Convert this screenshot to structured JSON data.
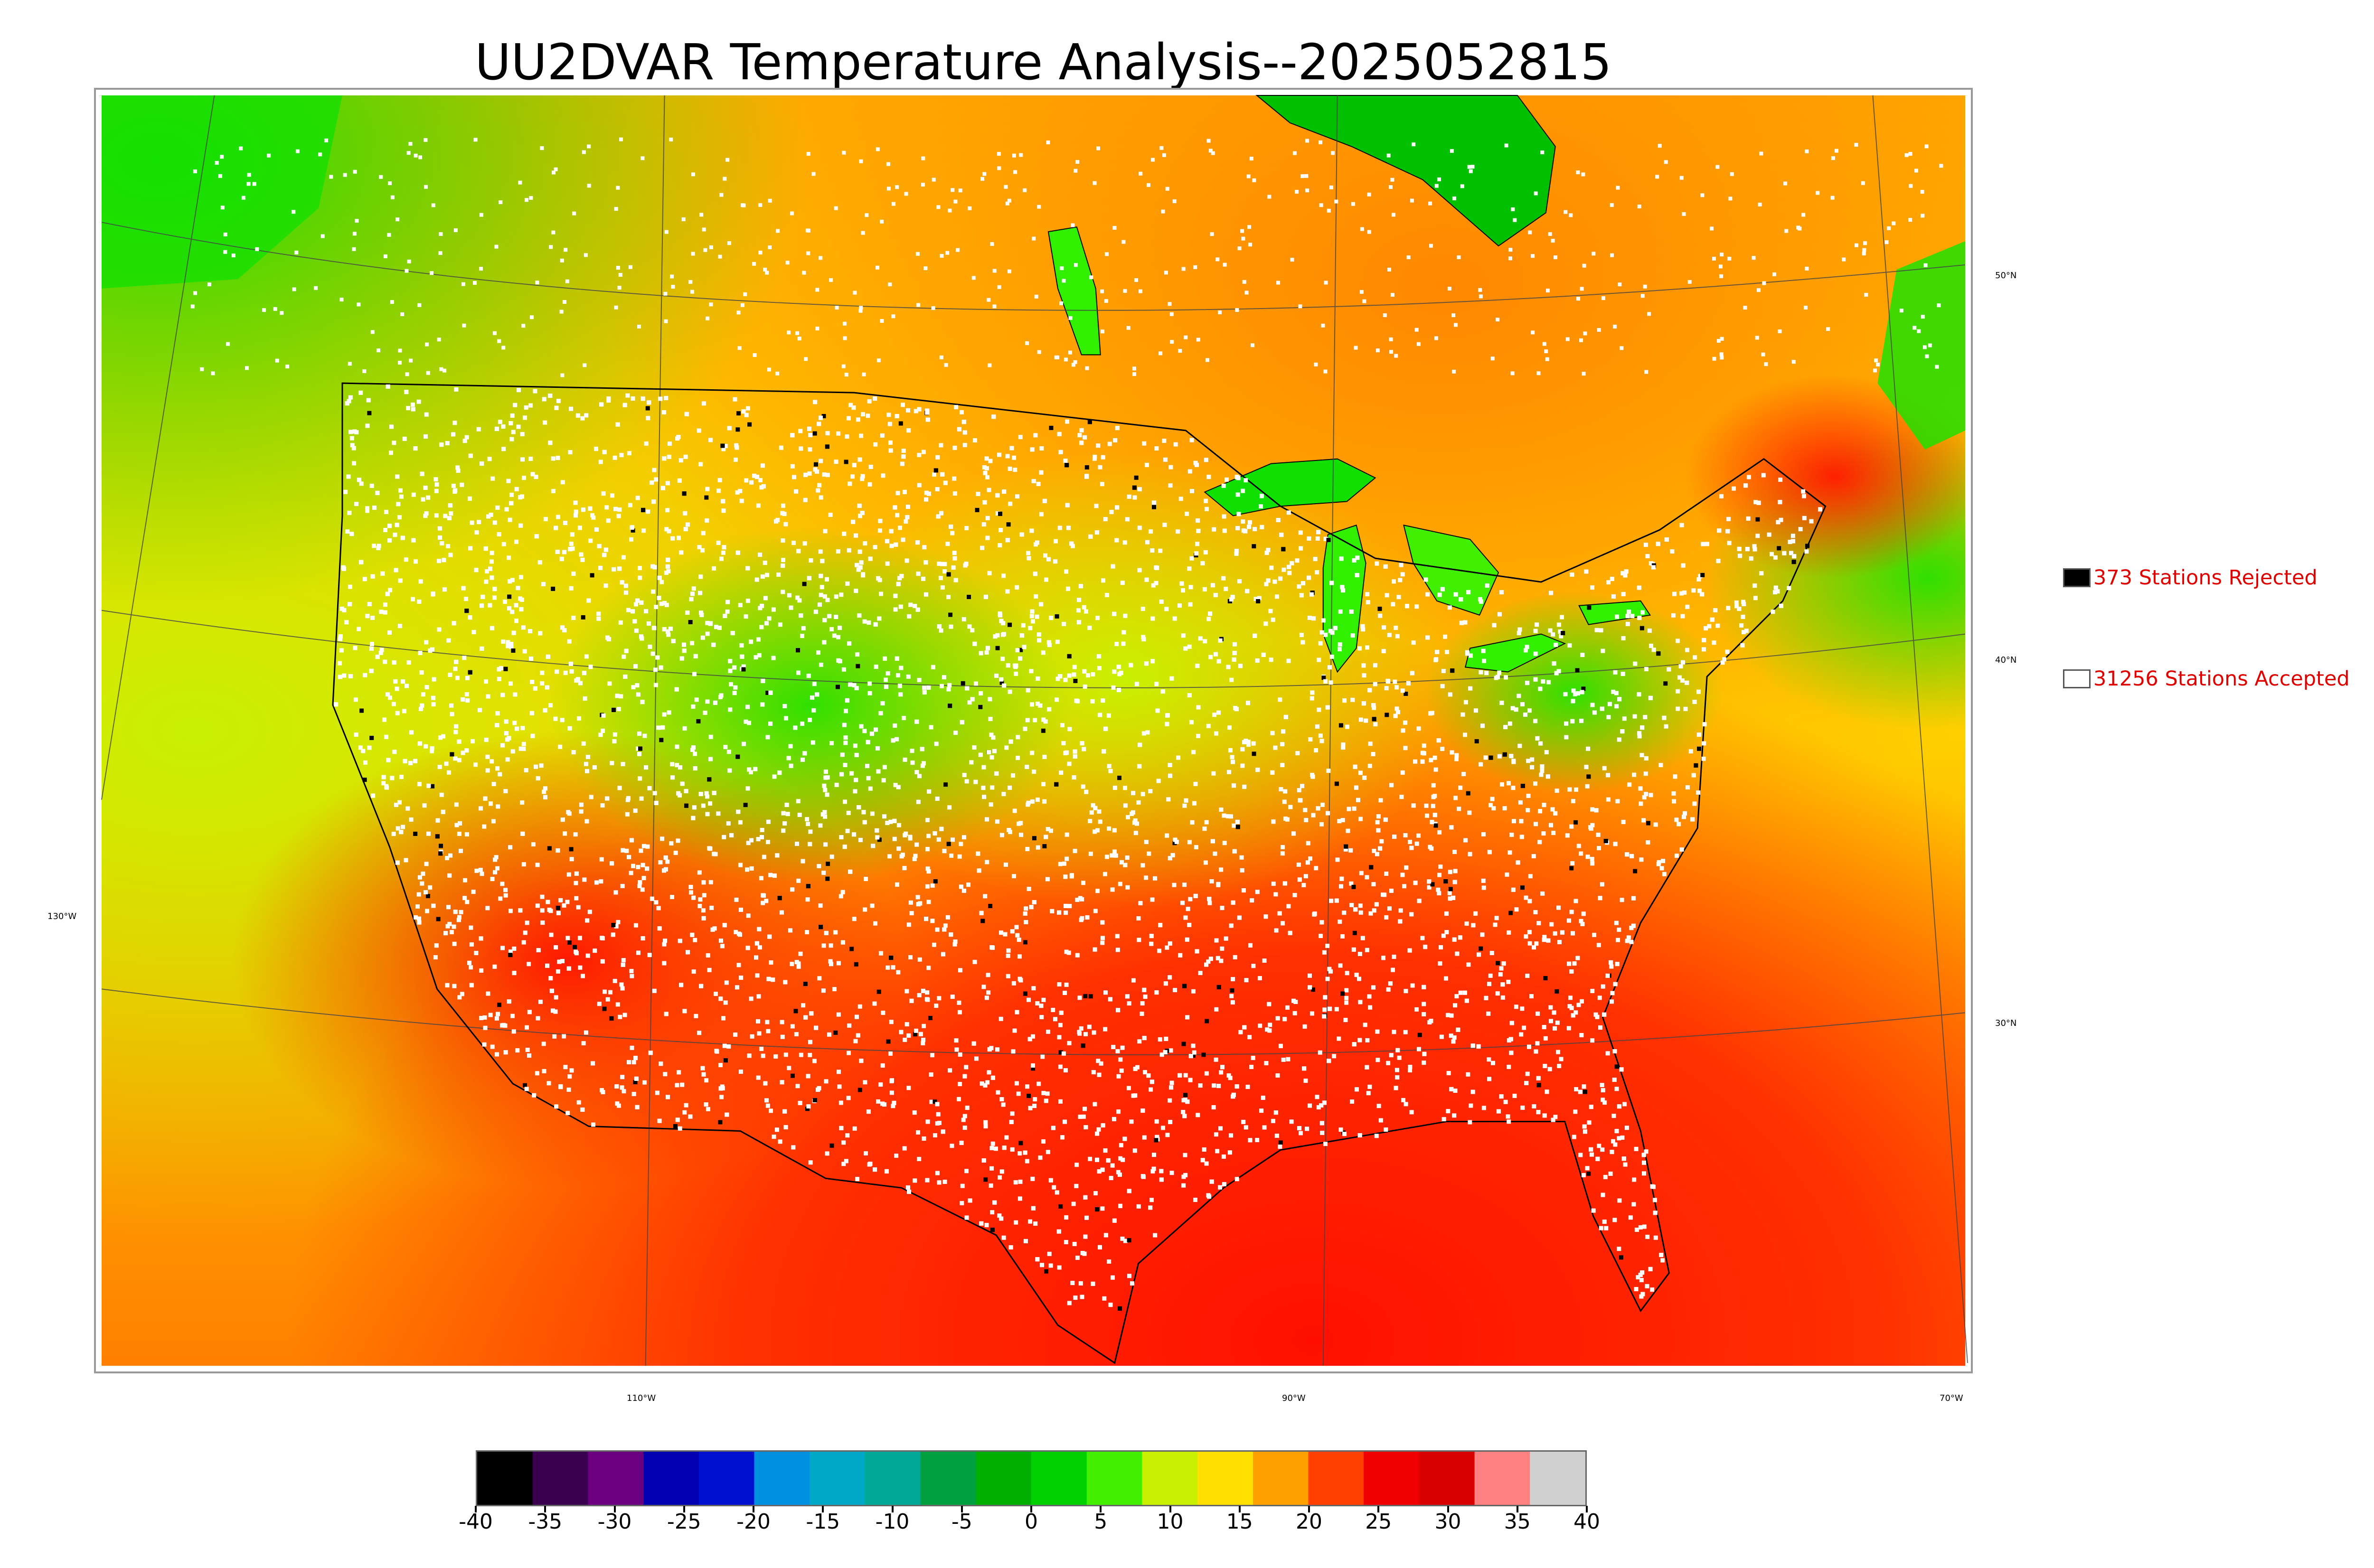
{
  "title": "UU2DVAR Temperature Analysis--2025052815",
  "map": {
    "latitude_labels": [
      "50°N",
      "40°N",
      "30°N"
    ],
    "longitude_labels": [
      "130°W",
      "110°W",
      "90°W",
      "70°W"
    ]
  },
  "legend": {
    "rejected": {
      "count_text": "373 Stations Rejected",
      "swatch_color": "#000000"
    },
    "accepted": {
      "count_text": "31256 Stations Accepted",
      "swatch_color": "#ffffff"
    }
  },
  "colorbar": {
    "ticks": [
      "-40",
      "-35",
      "-30",
      "-25",
      "-20",
      "-15",
      "-10",
      "-5",
      "0",
      "5",
      "10",
      "15",
      "20",
      "25",
      "30",
      "35",
      "40"
    ],
    "range": [
      -40,
      40
    ],
    "colors": [
      "#000000",
      "#3a0050",
      "#6a0080",
      "#0000b0",
      "#0010d0",
      "#0090e0",
      "#00a8c8",
      "#00a898",
      "#00a040",
      "#00b000",
      "#00d000",
      "#40f000",
      "#c8f000",
      "#ffe000",
      "#ffa000",
      "#ff4000",
      "#f00000",
      "#d80000",
      "#ff8080",
      "#d0d0d0"
    ]
  }
}
